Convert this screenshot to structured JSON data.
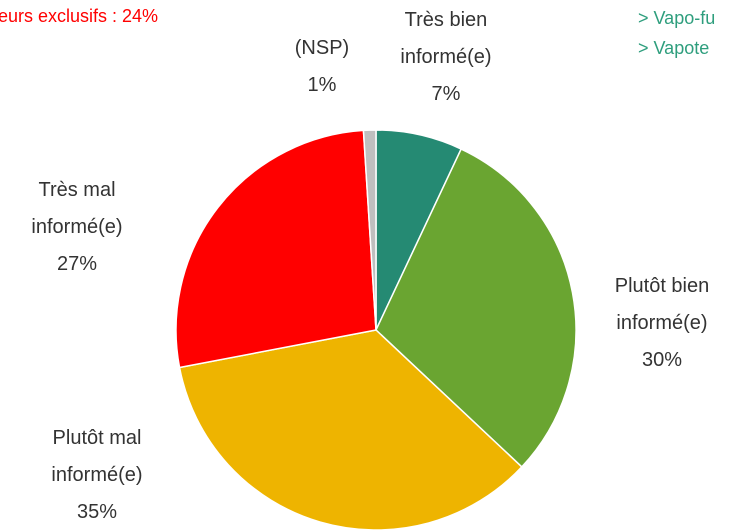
{
  "chart_data": {
    "type": "pie",
    "annotations": [
      "eurs exclusifs : 24%",
      "> Vapo-fu",
      "> Vapote"
    ],
    "categories": [
      "Très bien informé(e)",
      "Plutôt bien informé(e)",
      "Plutôt mal informé(e)",
      "Très mal informé(e)",
      "(NSP)"
    ],
    "values": [
      7,
      30,
      35,
      27,
      1
    ],
    "value_labels": [
      "7%",
      "30%",
      "35%",
      "27%",
      "1%"
    ],
    "colors": [
      "#258a73",
      "#6aa531",
      "#eeb400",
      "#ff0000",
      "#bfbfbf"
    ]
  }
}
